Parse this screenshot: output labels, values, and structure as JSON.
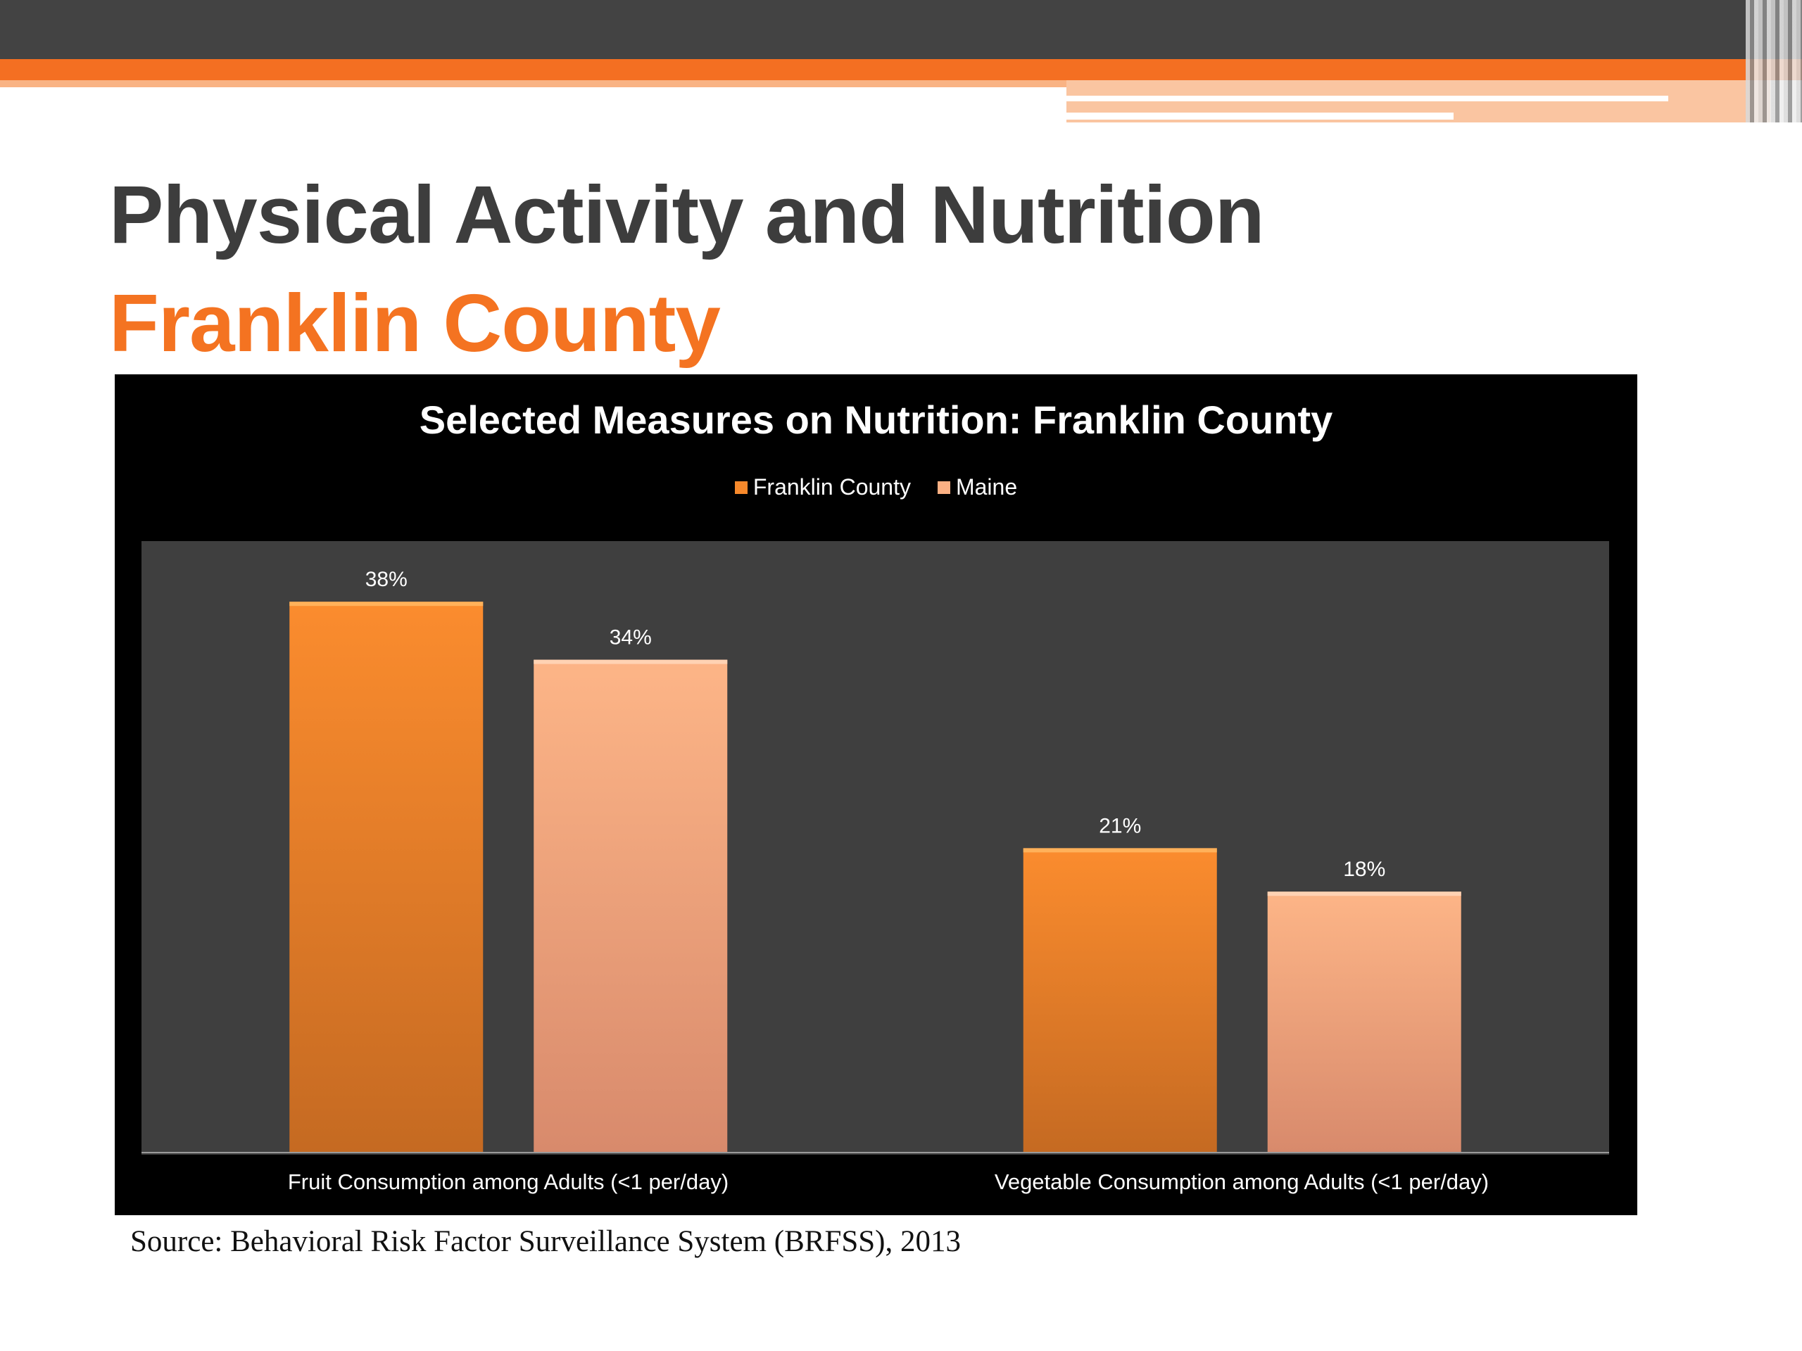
{
  "slide": {
    "title": "Physical Activity and Nutrition",
    "subtitle": "Franklin County",
    "source": "Source: Behavioral Risk Factor Surveillance System (BRFSS), 2013"
  },
  "colors": {
    "franklin": "#f7892b",
    "maine": "#fbb083",
    "title_orange": "#f47321",
    "banner_orange": "#f46f22"
  },
  "chart_data": {
    "type": "bar",
    "title": "Selected Measures on Nutrition: Franklin County",
    "categories": [
      "Fruit Consumption among Adults (<1 per/day)",
      "Vegetable Consumption among Adults (<1 per/day)"
    ],
    "series": [
      {
        "name": "Franklin County",
        "values": [
          38,
          21
        ],
        "labels": [
          "38%",
          "21%"
        ]
      },
      {
        "name": "Maine",
        "values": [
          34,
          18
        ],
        "labels": [
          "34%",
          "18%"
        ]
      }
    ],
    "ylim": [
      0,
      40
    ],
    "grid": false,
    "legend_position": "top"
  }
}
